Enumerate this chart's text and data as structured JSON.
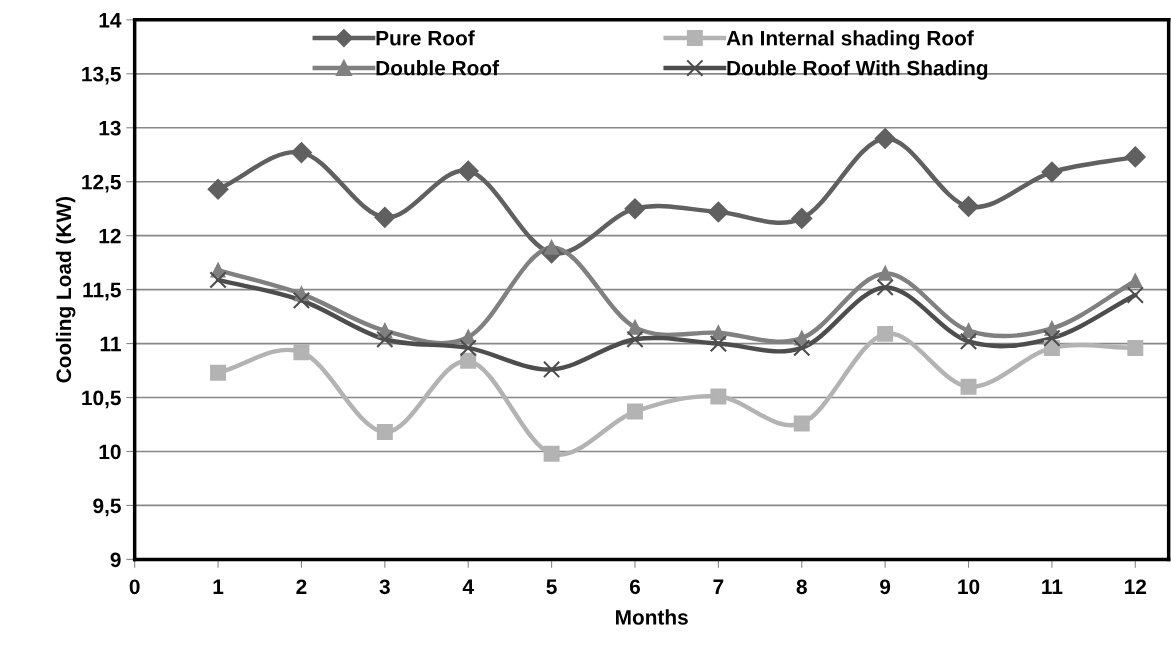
{
  "chart_data": {
    "type": "line",
    "xlabel": "Months",
    "ylabel": "Cooling Load (KW)",
    "x": [
      1,
      2,
      3,
      4,
      5,
      6,
      7,
      8,
      9,
      10,
      11,
      12
    ],
    "series": [
      {
        "name": "Pure Roof",
        "color": "#606060",
        "marker": "diamond",
        "values": [
          12.43,
          12.77,
          12.17,
          12.6,
          11.84,
          12.25,
          12.22,
          12.16,
          12.9,
          12.27,
          12.59,
          12.73
        ]
      },
      {
        "name": "An Internal shading Roof",
        "color": "#b3b3b3",
        "marker": "square",
        "values": [
          10.73,
          10.92,
          10.18,
          10.84,
          9.98,
          10.37,
          10.51,
          10.26,
          11.09,
          10.6,
          10.96,
          10.96
        ]
      },
      {
        "name": "Double Roof",
        "color": "#808080",
        "marker": "triangle",
        "values": [
          11.68,
          11.46,
          11.12,
          11.06,
          11.89,
          11.15,
          11.1,
          11.05,
          11.65,
          11.12,
          11.14,
          11.58
        ]
      },
      {
        "name": "Double Roof With Shading",
        "color": "#4d4d4d",
        "marker": "cross",
        "values": [
          11.59,
          11.4,
          11.04,
          10.96,
          10.76,
          11.04,
          11.0,
          10.96,
          11.52,
          11.02,
          11.05,
          11.45
        ]
      }
    ],
    "xlim": [
      0,
      12.4
    ],
    "xticks": [
      0,
      1,
      2,
      3,
      4,
      5,
      6,
      7,
      8,
      9,
      10,
      11,
      12
    ],
    "ylim": [
      9,
      14
    ],
    "yticks": [
      9,
      {
        "value": 9.5,
        "label": "9,5"
      },
      10,
      {
        "value": 10.5,
        "label": "10,5"
      },
      11,
      {
        "value": 11.5,
        "label": "11,5"
      },
      12,
      {
        "value": 12.5,
        "label": "12,5"
      },
      13,
      {
        "value": 13.5,
        "label": "13,5"
      },
      14
    ],
    "grid": "y",
    "legend": "top",
    "line_style": "solid"
  }
}
